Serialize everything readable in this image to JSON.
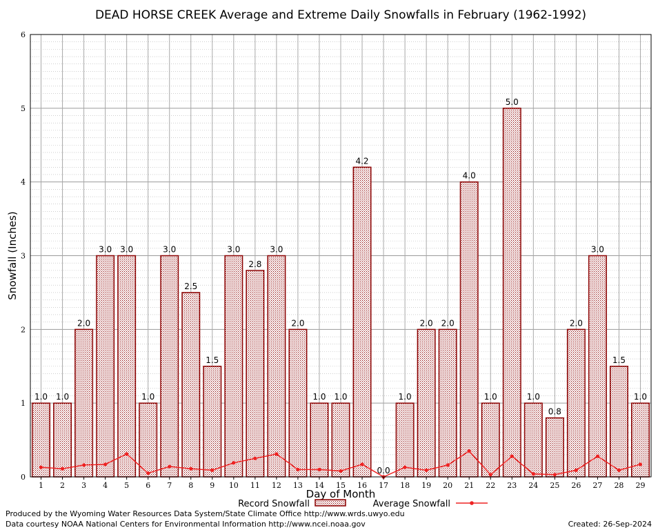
{
  "chart_data": {
    "type": "bar",
    "title": "DEAD HORSE CREEK Average and Extreme Daily Snowfalls in February (1962-1992)",
    "xlabel": "Day of Month",
    "ylabel": "Snowfall (Inches)",
    "ylim": [
      0,
      6
    ],
    "yticks": [
      "0",
      "1",
      "2",
      "3",
      "4",
      "5",
      "6"
    ],
    "grid": true,
    "categories": [
      "1",
      "2",
      "3",
      "4",
      "5",
      "6",
      "7",
      "8",
      "9",
      "10",
      "11",
      "12",
      "13",
      "14",
      "15",
      "16",
      "17",
      "18",
      "19",
      "20",
      "21",
      "22",
      "23",
      "24",
      "25",
      "26",
      "27",
      "28",
      "29"
    ],
    "series": [
      {
        "name": "Record Snowfall",
        "kind": "bar",
        "color": "#8b0000",
        "values": [
          1.0,
          1.0,
          2.0,
          3.0,
          3.0,
          1.0,
          3.0,
          2.5,
          1.5,
          3.0,
          2.8,
          3.0,
          2.0,
          1.0,
          1.0,
          4.2,
          0.0,
          1.0,
          2.0,
          2.0,
          4.0,
          1.0,
          5.0,
          1.0,
          0.8,
          2.0,
          3.0,
          1.5,
          1.0
        ],
        "labels": [
          "1.0",
          "1.0",
          "2.0",
          "3.0",
          "3.0",
          "1.0",
          "3.0",
          "2.5",
          "1.5",
          "3.0",
          "2.8",
          "3.0",
          "2.0",
          "1.0",
          "1.0",
          "4.2",
          "0.0",
          "1.0",
          "2.0",
          "2.0",
          "4.0",
          "1.0",
          "5.0",
          "1.0",
          "0.8",
          "2.0",
          "3.0",
          "1.5",
          "1.0"
        ]
      },
      {
        "name": "Average Snowfall",
        "kind": "line",
        "color": "#ee2222",
        "values": [
          0.13,
          0.11,
          0.16,
          0.17,
          0.31,
          0.05,
          0.14,
          0.11,
          0.09,
          0.19,
          0.25,
          0.31,
          0.1,
          0.1,
          0.08,
          0.17,
          0.0,
          0.13,
          0.09,
          0.16,
          0.35,
          0.03,
          0.28,
          0.04,
          0.03,
          0.09,
          0.28,
          0.09,
          0.17
        ]
      }
    ],
    "legend_position": "bottom"
  },
  "footer": {
    "credit_line1": "Produced by the Wyoming Water Resources Data System/State Climate Office http://www.wrds.uwyo.edu",
    "credit_line2": "Data courtesy NOAA National Centers for Environmental Information http://www.ncei.noaa.gov",
    "created": "Created:  26-Sep-2024"
  }
}
